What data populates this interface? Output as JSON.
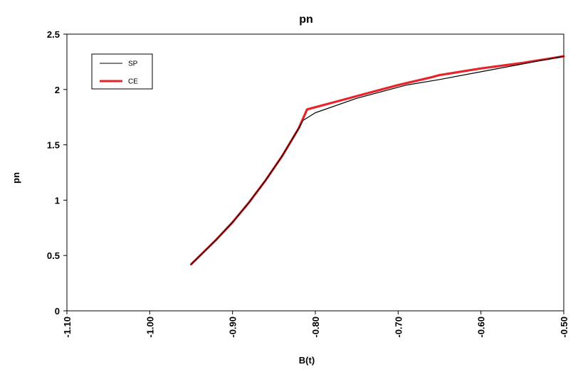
{
  "chart_data": {
    "type": "line",
    "title": "pn",
    "xlabel": "B(t)",
    "ylabel": "pn",
    "xlim": [
      -1.1,
      -0.5
    ],
    "ylim": [
      0,
      2.5
    ],
    "xticks": [
      -1.1,
      -1.0,
      -0.9,
      -0.8,
      -0.7,
      -0.6,
      -0.5
    ],
    "xtick_labels": [
      "-1.10",
      "-1.00",
      "-0.90",
      "-0.80",
      "-0.70",
      "-0.60",
      "-0.50"
    ],
    "yticks": [
      0,
      0.5,
      1,
      1.5,
      2,
      2.5
    ],
    "ytick_labels": [
      "0",
      "0.5",
      "1",
      "1.5",
      "2",
      "2.5"
    ],
    "grid": false,
    "legend": "top-left",
    "series": [
      {
        "name": "SP",
        "color": "#000000",
        "x": [
          -0.95,
          -0.92,
          -0.9,
          -0.88,
          -0.86,
          -0.84,
          -0.82,
          -0.815,
          -0.8,
          -0.75,
          -0.7,
          -0.69,
          -0.65,
          -0.6,
          -0.55,
          -0.5
        ],
        "y": [
          0.42,
          0.64,
          0.8,
          0.98,
          1.18,
          1.4,
          1.65,
          1.72,
          1.79,
          1.92,
          2.02,
          2.04,
          2.09,
          2.16,
          2.23,
          2.3
        ]
      },
      {
        "name": "CE",
        "color": "#e8232a",
        "x": [
          -0.95,
          -0.92,
          -0.9,
          -0.88,
          -0.86,
          -0.84,
          -0.82,
          -0.81,
          -0.78,
          -0.74,
          -0.7,
          -0.66,
          -0.65,
          -0.6,
          -0.55,
          -0.5
        ],
        "y": [
          0.42,
          0.64,
          0.8,
          0.98,
          1.18,
          1.4,
          1.65,
          1.82,
          1.88,
          1.96,
          2.04,
          2.11,
          2.13,
          2.19,
          2.24,
          2.3
        ]
      }
    ]
  }
}
